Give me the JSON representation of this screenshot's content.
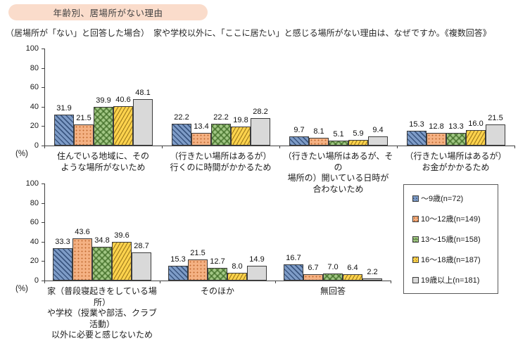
{
  "header": {
    "badge": "年齢別、居場所がない理由",
    "question": "（居場所が「ない」と回答した場合）　家や学校以外に、「ここに居たい」と感じる場所がない理由は、なぜですか。《複数回答》"
  },
  "legend": {
    "items": [
      {
        "label": "～9歳(n=72)"
      },
      {
        "label": "10～12歳(n=149)"
      },
      {
        "label": "13～15歳(n=158)"
      },
      {
        "label": "16～18歳(n=187)"
      },
      {
        "label": "19歳以上(n=181)"
      }
    ]
  },
  "colors": {
    "badge_bg": "#fadccb",
    "series": [
      "#7e9cc7",
      "#f4b183",
      "#a2c785",
      "#ffd34d",
      "#d9d9d9"
    ],
    "axis": "#404040"
  },
  "chart_data": [
    {
      "type": "bar",
      "position": "top",
      "ylabel": "(%)",
      "ylim": [
        0,
        100
      ],
      "yticks": [
        0,
        20,
        40,
        60,
        80,
        100
      ],
      "grid": false,
      "legend_position": "bottom-right-box",
      "categories": [
        "住んでいる地域に、その\nような場所がないため",
        "（行きたい場所はあるが）\n行くのに時間がかかるため",
        "（行きたい場所はあるが、その\n場所の）開いている日時が\n合わないため",
        "（行きたい場所はあるが）\nお金がかかるため"
      ],
      "series": [
        {
          "name": "～9歳(n=72)",
          "values": [
            31.9,
            22.2,
            9.7,
            15.3
          ]
        },
        {
          "name": "10～12歳(n=149)",
          "values": [
            21.5,
            13.4,
            8.1,
            12.8
          ]
        },
        {
          "name": "13～15歳(n=158)",
          "values": [
            39.9,
            22.2,
            5.1,
            13.3
          ]
        },
        {
          "name": "16～18歳(n=187)",
          "values": [
            40.6,
            19.8,
            5.9,
            16.0
          ]
        },
        {
          "name": "19歳以上(n=181)",
          "values": [
            48.1,
            28.2,
            9.4,
            21.5
          ]
        }
      ]
    },
    {
      "type": "bar",
      "position": "bottom",
      "ylabel": "(%)",
      "ylim": [
        0,
        100
      ],
      "yticks": [
        0,
        20,
        40,
        60,
        80,
        100
      ],
      "grid": false,
      "categories": [
        "家（普段寝起きをしている場所）\nや学校（授業や部活、クラブ活動）\n以外に必要と感じないため",
        "そのほか",
        "無回答"
      ],
      "series": [
        {
          "name": "～9歳(n=72)",
          "values": [
            33.3,
            15.3,
            16.7
          ]
        },
        {
          "name": "10～12歳(n=149)",
          "values": [
            43.6,
            21.5,
            6.7
          ]
        },
        {
          "name": "13～15歳(n=158)",
          "values": [
            34.8,
            12.7,
            7.0
          ]
        },
        {
          "name": "16～18歳(n=187)",
          "values": [
            39.6,
            8.0,
            6.4
          ]
        },
        {
          "name": "19歳以上(n=181)",
          "values": [
            28.7,
            14.9,
            2.2
          ]
        }
      ]
    }
  ]
}
